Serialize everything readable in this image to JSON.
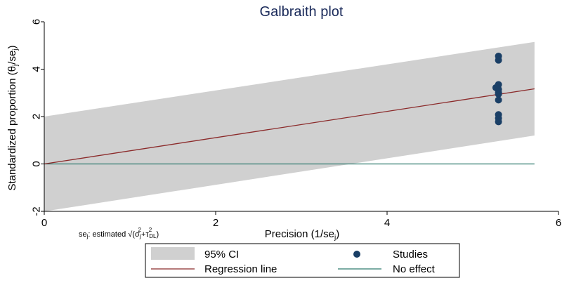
{
  "chart_data": {
    "type": "scatter",
    "title": "Galbraith plot",
    "xlabel": "Precision (1/se",
    "xlabel_sub": "j",
    "xlabel_end": ")",
    "ylabel": "Standardized proportion  (θ",
    "ylabel_sub1": "j",
    "ylabel_mid": "/se",
    "ylabel_sub2": "j",
    "ylabel_end": ")",
    "note": "se",
    "note_sub": "j",
    "note_rest": ": estimated √(σ",
    "note_sub2": "j",
    "note_sup2": "2",
    "note_plus": "+τ",
    "note_sup3": "2",
    "note_sub3": "DL",
    "note_end": ")",
    "xlim": [
      0,
      6
    ],
    "ylim": [
      -2,
      6
    ],
    "x_ticks": [
      "0",
      "2",
      "4",
      "6"
    ],
    "y_ticks": [
      "-2",
      "0",
      "2",
      "4",
      "6"
    ],
    "x_tick_values": [
      0,
      2,
      4,
      6
    ],
    "y_tick_values": [
      -2,
      0,
      2,
      4,
      6
    ],
    "ci_band": {
      "x": [
        0,
        5.72
      ],
      "upper": [
        2,
        5.15
      ],
      "lower": [
        -2,
        1.2
      ]
    },
    "regression_line": {
      "x": [
        0,
        5.72
      ],
      "y": [
        0,
        3.17
      ]
    },
    "no_effect_line": {
      "x": [
        0,
        5.72
      ],
      "y": [
        0,
        0
      ]
    },
    "series": [
      {
        "name": "Studies",
        "points": [
          {
            "x": 5.3,
            "y": 4.55
          },
          {
            "x": 5.3,
            "y": 4.38
          },
          {
            "x": 5.3,
            "y": 3.35
          },
          {
            "x": 5.3,
            "y": 3.15
          },
          {
            "x": 5.27,
            "y": 3.22
          },
          {
            "x": 5.3,
            "y": 3.02
          },
          {
            "x": 5.3,
            "y": 2.95
          },
          {
            "x": 5.3,
            "y": 2.7
          },
          {
            "x": 5.3,
            "y": 2.08
          },
          {
            "x": 5.3,
            "y": 1.93
          },
          {
            "x": 5.3,
            "y": 1.78
          }
        ]
      }
    ],
    "legend": {
      "position": "bottom",
      "items": [
        {
          "label": "95% CI",
          "kind": "area"
        },
        {
          "label": "Studies",
          "kind": "marker"
        },
        {
          "label": "Regression line",
          "kind": "line"
        },
        {
          "label": "No effect",
          "kind": "line"
        }
      ]
    },
    "colors": {
      "ci_band": "#d0d0d0",
      "regression": "#8b2a2a",
      "no_effect": "#2e7a6e",
      "marker": "#1a3f66",
      "title": "#1a2a5a"
    }
  }
}
